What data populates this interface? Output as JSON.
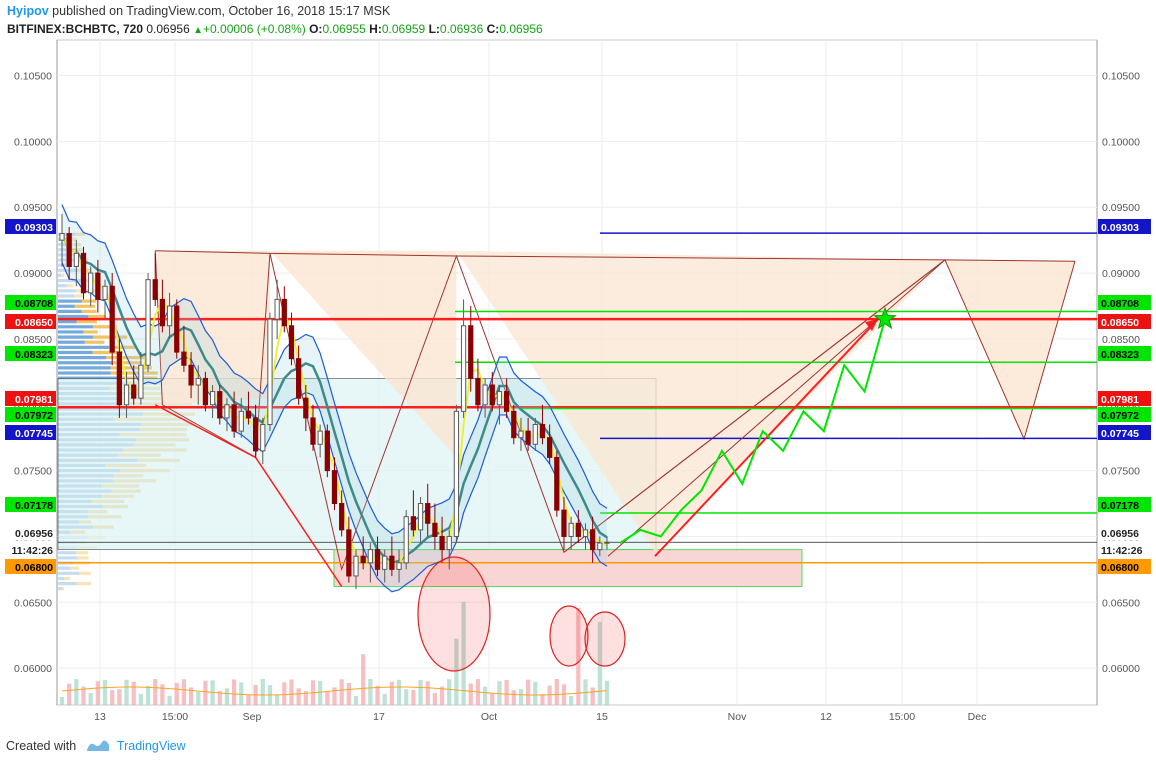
{
  "header": {
    "author": "Hyipov",
    "published_text": "published on TradingView.com, October 16, 2018 15:17 MSK",
    "symbol": "BITFINEX:BCHBTC, 720",
    "last": "0.06956",
    "change": "+0.00006 (+0.08%)",
    "ohlc": [
      {
        "label": "O:",
        "value": "0.06955"
      },
      {
        "label": "H:",
        "value": "0.06959"
      },
      {
        "label": "L:",
        "value": "0.06936"
      },
      {
        "label": "C:",
        "value": "0.06956"
      }
    ]
  },
  "footer": {
    "created_with": "Created with",
    "brand": "TradingView"
  },
  "colors": {
    "bull": "#5a5a5a",
    "bear": "#8b0000",
    "red": "#ff1e1e",
    "green": "#00e600",
    "blue": "#1414c8",
    "orange": "#ff9900",
    "brown": "#a0342e",
    "accent": "#2196f3"
  },
  "chart_data": {
    "type": "candlestick",
    "symbol": "BITFINEX:BCHBTC",
    "interval": "720",
    "ylim": [
      0.0572,
      0.1077
    ],
    "y_ticks": [
      "0.10500",
      "0.10000",
      "0.09500",
      "0.09000",
      "0.08500",
      "0.08000",
      "0.07500",
      "0.07000",
      "0.06500",
      "0.06000"
    ],
    "x_ticks": [
      "13",
      "15:00",
      "Sep",
      "17",
      "Oct",
      "15",
      "Nov",
      "12",
      "15:00",
      "Dec"
    ],
    "price_tags": [
      {
        "value": "0.09303",
        "style": "blue"
      },
      {
        "value": "0.08708",
        "style": "green"
      },
      {
        "value": "0.08650",
        "style": "red"
      },
      {
        "value": "0.08323",
        "style": "green"
      },
      {
        "value": "0.07981",
        "style": "red"
      },
      {
        "value": "0.07972",
        "style": "green"
      },
      {
        "value": "0.07745",
        "style": "blue"
      },
      {
        "value": "0.07178",
        "style": "green"
      },
      {
        "value": "0.06956",
        "style": "plain"
      },
      {
        "value": "11:42:26",
        "style": "plain"
      },
      {
        "value": "0.06800",
        "style": "orange"
      }
    ],
    "horizontal_levels": [
      {
        "price": 0.09303,
        "color": "blue"
      },
      {
        "price": 0.08708,
        "color": "green"
      },
      {
        "price": 0.0865,
        "color": "red"
      },
      {
        "price": 0.08323,
        "color": "green"
      },
      {
        "price": 0.07981,
        "color": "red"
      },
      {
        "price": 0.07972,
        "color": "green"
      },
      {
        "price": 0.07745,
        "color": "blue"
      },
      {
        "price": 0.07178,
        "color": "green"
      },
      {
        "price": 0.068,
        "color": "orange"
      }
    ],
    "candles": [
      [
        0.0925,
        0.0945,
        0.0905,
        0.093
      ],
      [
        0.093,
        0.0935,
        0.0895,
        0.0905
      ],
      [
        0.0905,
        0.0925,
        0.089,
        0.0915
      ],
      [
        0.0915,
        0.092,
        0.088,
        0.0885
      ],
      [
        0.0885,
        0.0905,
        0.0875,
        0.09
      ],
      [
        0.09,
        0.091,
        0.087,
        0.088
      ],
      [
        0.088,
        0.0895,
        0.0865,
        0.089
      ],
      [
        0.089,
        0.09,
        0.083,
        0.084
      ],
      [
        0.084,
        0.085,
        0.079,
        0.08
      ],
      [
        0.08,
        0.0825,
        0.079,
        0.0815
      ],
      [
        0.0815,
        0.083,
        0.08,
        0.0805
      ],
      [
        0.0805,
        0.084,
        0.08,
        0.083
      ],
      [
        0.083,
        0.09,
        0.0825,
        0.0895
      ],
      [
        0.0895,
        0.0915,
        0.0875,
        0.088
      ],
      [
        0.088,
        0.0895,
        0.0855,
        0.086
      ],
      [
        0.086,
        0.0885,
        0.085,
        0.0875
      ],
      [
        0.0875,
        0.088,
        0.0835,
        0.084
      ],
      [
        0.084,
        0.086,
        0.0825,
        0.083
      ],
      [
        0.083,
        0.084,
        0.0805,
        0.0815
      ],
      [
        0.0815,
        0.083,
        0.08,
        0.082
      ],
      [
        0.082,
        0.0825,
        0.0795,
        0.08
      ],
      [
        0.08,
        0.0815,
        0.079,
        0.081
      ],
      [
        0.081,
        0.0815,
        0.0785,
        0.079
      ],
      [
        0.079,
        0.0805,
        0.078,
        0.08
      ],
      [
        0.08,
        0.081,
        0.0775,
        0.078
      ],
      [
        0.078,
        0.0805,
        0.0775,
        0.0795
      ],
      [
        0.0795,
        0.081,
        0.0785,
        0.079
      ],
      [
        0.079,
        0.08,
        0.076,
        0.0765
      ],
      [
        0.0765,
        0.079,
        0.0755,
        0.0785
      ],
      [
        0.0785,
        0.087,
        0.078,
        0.0865
      ],
      [
        0.0865,
        0.0895,
        0.085,
        0.088
      ],
      [
        0.088,
        0.089,
        0.0855,
        0.086
      ],
      [
        0.086,
        0.087,
        0.083,
        0.0835
      ],
      [
        0.0835,
        0.0845,
        0.08,
        0.0805
      ],
      [
        0.0805,
        0.0815,
        0.078,
        0.079
      ],
      [
        0.079,
        0.08,
        0.0765,
        0.077
      ],
      [
        0.077,
        0.0785,
        0.076,
        0.078
      ],
      [
        0.078,
        0.0785,
        0.0745,
        0.075
      ],
      [
        0.075,
        0.076,
        0.072,
        0.0725
      ],
      [
        0.0725,
        0.0735,
        0.07,
        0.0705
      ],
      [
        0.0705,
        0.0715,
        0.0665,
        0.067
      ],
      [
        0.067,
        0.069,
        0.066,
        0.0685
      ],
      [
        0.0685,
        0.07,
        0.0675,
        0.068
      ],
      [
        0.068,
        0.0695,
        0.0665,
        0.069
      ],
      [
        0.069,
        0.07,
        0.067,
        0.0675
      ],
      [
        0.0675,
        0.069,
        0.0665,
        0.0685
      ],
      [
        0.0685,
        0.07,
        0.067,
        0.0675
      ],
      [
        0.0675,
        0.069,
        0.0665,
        0.068
      ],
      [
        0.068,
        0.072,
        0.0675,
        0.0715
      ],
      [
        0.0715,
        0.0735,
        0.07,
        0.0705
      ],
      [
        0.0705,
        0.073,
        0.0695,
        0.0725
      ],
      [
        0.0725,
        0.074,
        0.07,
        0.071
      ],
      [
        0.071,
        0.0725,
        0.069,
        0.07
      ],
      [
        0.07,
        0.0715,
        0.068,
        0.069
      ],
      [
        0.069,
        0.0705,
        0.0675,
        0.07
      ],
      [
        0.07,
        0.08,
        0.0695,
        0.0795
      ],
      [
        0.0795,
        0.088,
        0.079,
        0.086
      ],
      [
        0.086,
        0.0875,
        0.081,
        0.082
      ],
      [
        0.082,
        0.0835,
        0.0795,
        0.08
      ],
      [
        0.08,
        0.082,
        0.079,
        0.0815
      ],
      [
        0.0815,
        0.0825,
        0.0795,
        0.08
      ],
      [
        0.08,
        0.0815,
        0.0785,
        0.081
      ],
      [
        0.081,
        0.082,
        0.079,
        0.0795
      ],
      [
        0.0795,
        0.08,
        0.077,
        0.0775
      ],
      [
        0.0775,
        0.079,
        0.0765,
        0.078
      ],
      [
        0.078,
        0.079,
        0.0765,
        0.077
      ],
      [
        0.077,
        0.079,
        0.0765,
        0.0785
      ],
      [
        0.0785,
        0.08,
        0.077,
        0.0775
      ],
      [
        0.0775,
        0.0785,
        0.0755,
        0.076
      ],
      [
        0.076,
        0.0765,
        0.0715,
        0.072
      ],
      [
        0.072,
        0.073,
        0.069,
        0.07
      ],
      [
        0.07,
        0.0715,
        0.069,
        0.071
      ],
      [
        0.071,
        0.072,
        0.0695,
        0.07
      ],
      [
        0.07,
        0.071,
        0.069,
        0.0705
      ],
      [
        0.0705,
        0.0715,
        0.068,
        0.069
      ],
      [
        0.069,
        0.07,
        0.0685,
        0.0695
      ],
      [
        0.0695,
        0.07,
        0.069,
        0.06956
      ]
    ],
    "forecast": {
      "red_arrow": [
        [
          0.0685,
          0
        ],
        [
          0.0865,
          1
        ]
      ],
      "green_path": [
        0.0695,
        0.0705,
        0.07,
        0.072,
        0.0735,
        0.0765,
        0.074,
        0.078,
        0.0765,
        0.0795,
        0.078,
        0.083,
        0.081,
        0.0865
      ],
      "target": 0.0865,
      "drop_to": 0.0774
    },
    "volume_circles": 3
  }
}
